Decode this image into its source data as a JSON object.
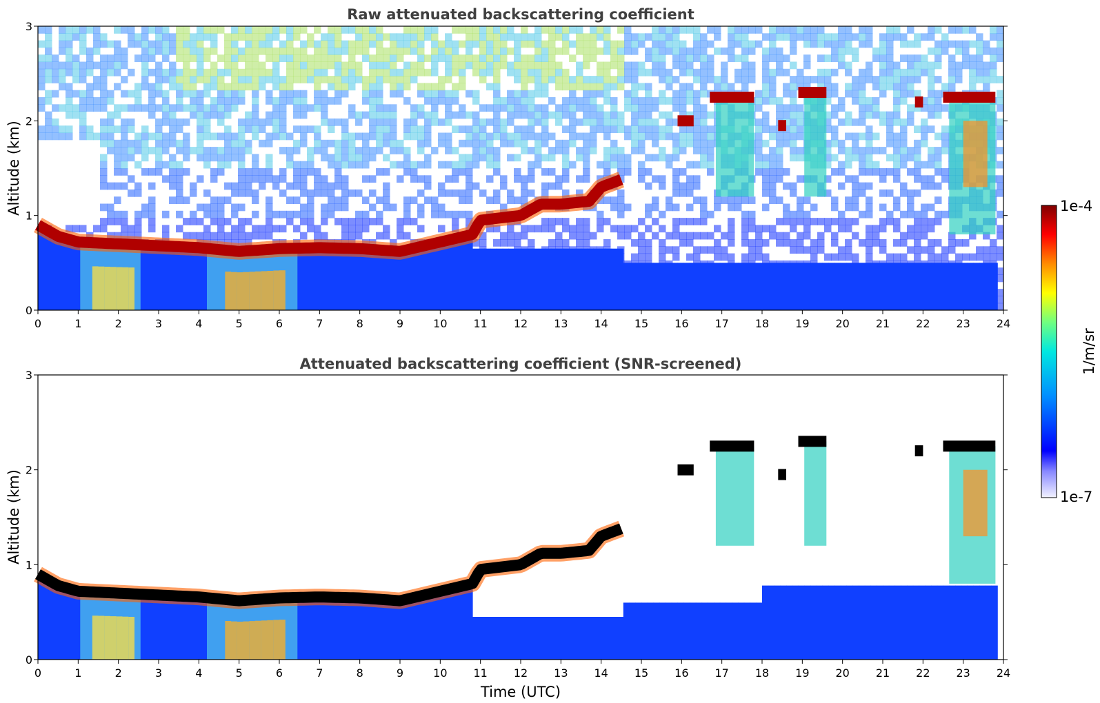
{
  "chart_data": [
    {
      "type": "heatmap",
      "title": "Raw attenuated backscattering coefficient",
      "xlabel": "",
      "ylabel": "Altitude (km)",
      "xlim": [
        0,
        24
      ],
      "ylim": [
        0,
        3
      ],
      "xticks": [
        "0",
        "1",
        "2",
        "3",
        "4",
        "5",
        "6",
        "7",
        "8",
        "9",
        "10",
        "11",
        "12",
        "13",
        "14",
        "15",
        "16",
        "17",
        "18",
        "19",
        "20",
        "21",
        "22",
        "23",
        "24"
      ],
      "yticks": [
        "0",
        "1",
        "2",
        "3"
      ],
      "screened": false,
      "boundary_layer_top_km": [
        {
          "t": 0.0,
          "z": 0.9
        },
        {
          "t": 0.5,
          "z": 0.78
        },
        {
          "t": 1.0,
          "z": 0.72
        },
        {
          "t": 2.0,
          "z": 0.7
        },
        {
          "t": 3.0,
          "z": 0.68
        },
        {
          "t": 4.0,
          "z": 0.66
        },
        {
          "t": 5.0,
          "z": 0.62
        },
        {
          "t": 6.0,
          "z": 0.65
        },
        {
          "t": 7.0,
          "z": 0.66
        },
        {
          "t": 8.0,
          "z": 0.65
        },
        {
          "t": 9.0,
          "z": 0.62
        },
        {
          "t": 10.0,
          "z": 0.72
        },
        {
          "t": 10.8,
          "z": 0.8
        },
        {
          "t": 11.0,
          "z": 0.95
        },
        {
          "t": 12.0,
          "z": 1.0
        },
        {
          "t": 12.5,
          "z": 1.12
        },
        {
          "t": 13.0,
          "z": 1.12
        },
        {
          "t": 13.7,
          "z": 1.15
        },
        {
          "t": 14.0,
          "z": 1.3
        },
        {
          "t": 14.5,
          "z": 1.38
        }
      ],
      "cloud_layers": [
        {
          "t0": 15.9,
          "t1": 16.3,
          "z": 2.0
        },
        {
          "t0": 16.7,
          "t1": 17.8,
          "z": 2.25
        },
        {
          "t0": 18.4,
          "t1": 18.6,
          "z": 1.95
        },
        {
          "t0": 18.9,
          "t1": 19.6,
          "z": 2.3
        },
        {
          "t0": 21.8,
          "t1": 22.0,
          "z": 2.2
        },
        {
          "t0": 22.5,
          "t1": 23.8,
          "z": 2.25
        }
      ]
    },
    {
      "type": "heatmap",
      "title": "Attenuated backscattering coefficient (SNR-screened)",
      "xlabel": "Time (UTC)",
      "ylabel": "Altitude (km)",
      "xlim": [
        0,
        24
      ],
      "ylim": [
        0,
        3
      ],
      "xticks": [
        "0",
        "1",
        "2",
        "3",
        "4",
        "5",
        "6",
        "7",
        "8",
        "9",
        "10",
        "11",
        "12",
        "13",
        "14",
        "15",
        "16",
        "17",
        "18",
        "19",
        "20",
        "21",
        "22",
        "23",
        "24"
      ],
      "yticks": [
        "0",
        "1",
        "2",
        "3"
      ],
      "screened": true
    }
  ],
  "colorbar": {
    "label": "1/m/sr",
    "min_label": "1e-7",
    "max_label": "1e-4",
    "colormap": [
      "#ffffff",
      "#0000ff",
      "#00a0ff",
      "#00ffd0",
      "#80ff80",
      "#ffff00",
      "#ff8000",
      "#ff0000",
      "#8b0000"
    ]
  }
}
